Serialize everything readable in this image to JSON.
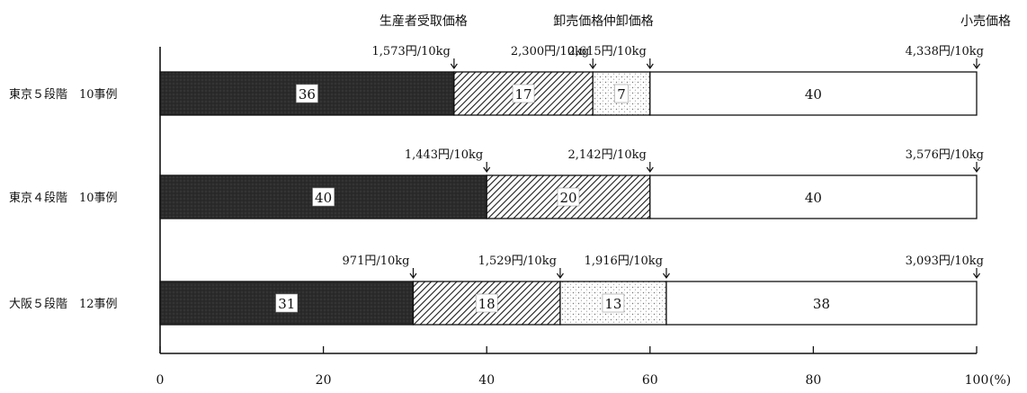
{
  "chart_data": {
    "type": "bar",
    "orientation": "horizontal",
    "stacked": true,
    "xlim": [
      0,
      100
    ],
    "x_ticks": [
      "0",
      "20",
      "40",
      "60",
      "80",
      "100"
    ],
    "x_unit": "(%)",
    "stage_headers": [
      "生産者受取価格",
      "卸売価格",
      "仲卸価格",
      "小売価格"
    ],
    "rows": [
      {
        "label": "東京５段階　10事例",
        "segments": [
          {
            "value": 36,
            "label": "36",
            "fill": "dark"
          },
          {
            "value": 17,
            "label": "17",
            "fill": "hatch"
          },
          {
            "value": 7,
            "label": "7",
            "fill": "dots"
          },
          {
            "value": 40,
            "label": "40",
            "fill": "white"
          }
        ],
        "prices": [
          {
            "at": 36,
            "text": "1,573円/10kg"
          },
          {
            "at": 53,
            "text": "2,300円/10kg"
          },
          {
            "at": 60,
            "text": "2,615円/10kg"
          },
          {
            "at": 100,
            "text": "4,338円/10kg"
          }
        ]
      },
      {
        "label": "東京４段階　10事例",
        "segments": [
          {
            "value": 40,
            "label": "40",
            "fill": "dark"
          },
          {
            "value": 20,
            "label": "20",
            "fill": "hatch"
          },
          {
            "value": 40,
            "label": "40",
            "fill": "white"
          }
        ],
        "prices": [
          {
            "at": 40,
            "text": "1,443円/10kg"
          },
          {
            "at": 60,
            "text": "2,142円/10kg"
          },
          {
            "at": 100,
            "text": "3,576円/10kg"
          }
        ]
      },
      {
        "label": "大阪５段階　12事例",
        "segments": [
          {
            "value": 31,
            "label": "31",
            "fill": "dark"
          },
          {
            "value": 18,
            "label": "18",
            "fill": "hatch"
          },
          {
            "value": 13,
            "label": "13",
            "fill": "dots"
          },
          {
            "value": 38,
            "label": "38",
            "fill": "white"
          }
        ],
        "prices": [
          {
            "at": 31,
            "text": "971円/10kg"
          },
          {
            "at": 49,
            "text": "1,529円/10kg"
          },
          {
            "at": 62,
            "text": "1,916円/10kg"
          },
          {
            "at": 100,
            "text": "3,093円/10kg"
          }
        ]
      }
    ]
  }
}
